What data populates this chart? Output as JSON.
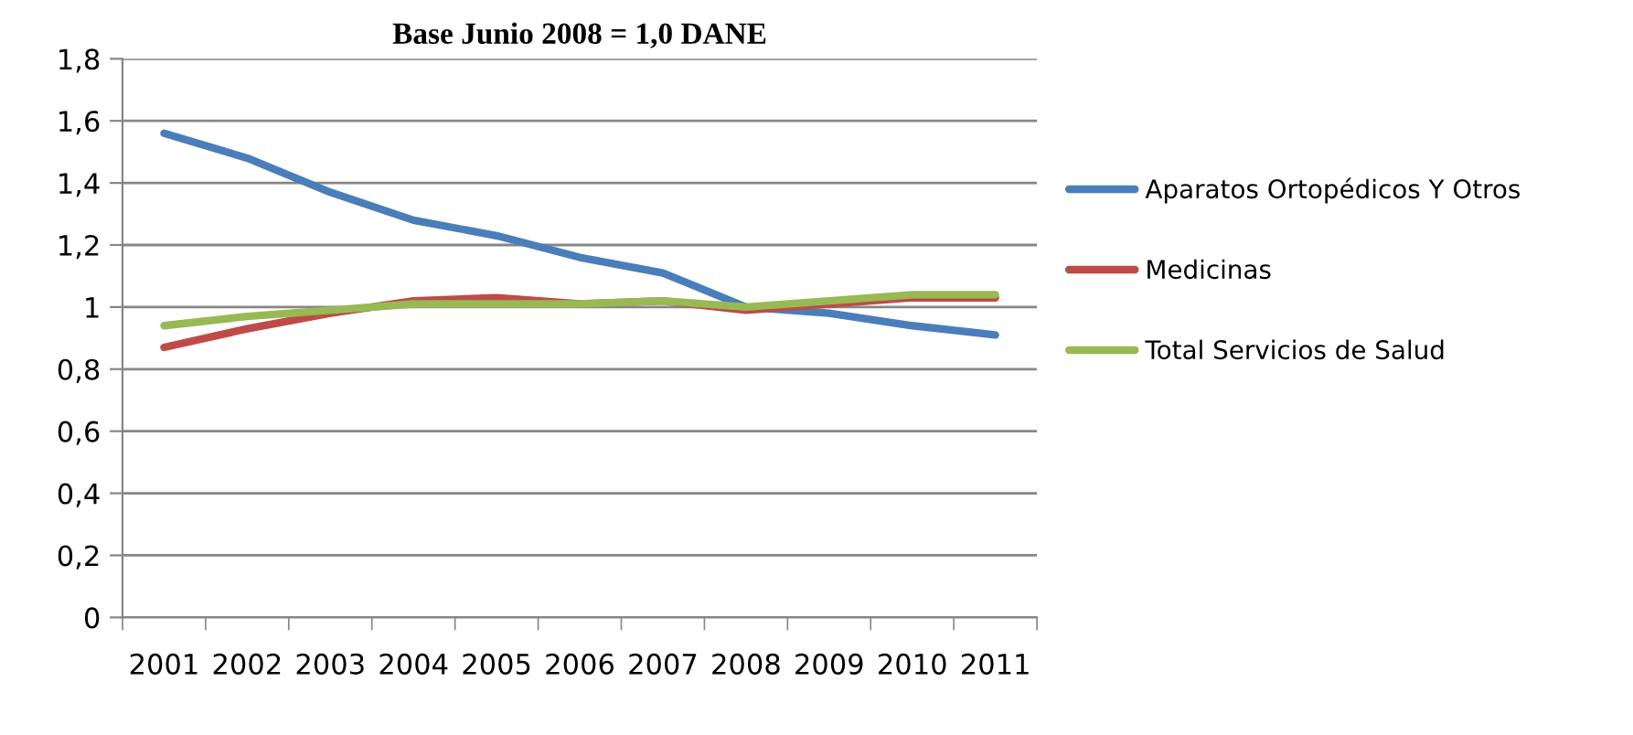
{
  "chart_data": {
    "type": "line",
    "title": "Base Junio 2008 = 1,0 DANE",
    "categories": [
      "2001",
      "2002",
      "2003",
      "2004",
      "2005",
      "2006",
      "2007",
      "2008",
      "2009",
      "2010",
      "2011"
    ],
    "series": [
      {
        "name": "Aparatos Ortopédicos Y Otros",
        "color": "#4a7ebb",
        "values": [
          1.56,
          1.48,
          1.37,
          1.28,
          1.23,
          1.16,
          1.11,
          1.0,
          0.98,
          0.94,
          0.91
        ]
      },
      {
        "name": "Medicinas",
        "color": "#be4b48",
        "values": [
          0.87,
          0.93,
          0.98,
          1.02,
          1.03,
          1.01,
          1.02,
          0.99,
          1.01,
          1.03,
          1.03
        ]
      },
      {
        "name": "Total Servicios de Salud",
        "color": "#98b954",
        "values": [
          0.94,
          0.97,
          0.99,
          1.01,
          1.01,
          1.01,
          1.02,
          1.0,
          1.02,
          1.04,
          1.04
        ]
      }
    ],
    "ylim": [
      0,
      1.8
    ],
    "yticks": [
      0,
      {
        "value": 0.2,
        "label": "0,2"
      },
      {
        "value": 0.4,
        "label": "0,4"
      },
      {
        "value": 0.6,
        "label": "0,6"
      },
      {
        "value": 0.8,
        "label": "0,8"
      },
      1,
      {
        "value": 1.2,
        "label": "1,2"
      },
      {
        "value": 1.4,
        "label": "1,4"
      },
      {
        "value": 1.6,
        "label": "1,6"
      },
      {
        "value": 1.8,
        "label": "1,8"
      }
    ],
    "grid": "y",
    "legend": "right",
    "marker": "none",
    "line_style": "solid"
  }
}
